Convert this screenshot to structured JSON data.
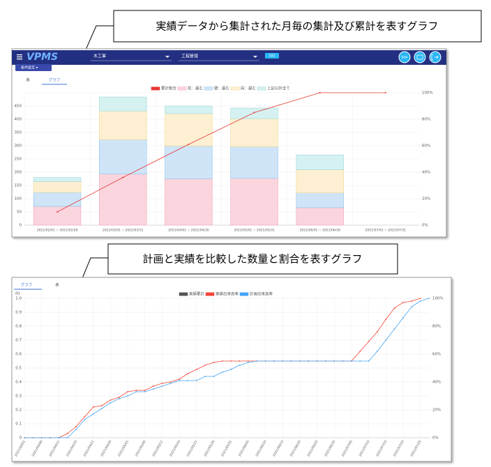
{
  "callouts": [
    "実績データから集計された月毎の集計及び累計を表すグラフ",
    "計画と実績を比較した数量と割合を表すグラフ"
  ],
  "app_bar": {
    "logo": "VPMS",
    "select1": "木工事",
    "select2": "工程管理",
    "go": "GO",
    "box": "box",
    "condition": "条件設定 ▾"
  },
  "tabs1": [
    "表",
    "グラフ"
  ],
  "tabs2": [
    "グラフ",
    "表"
  ],
  "chart_data": [
    {
      "type": "bar",
      "stacked": true,
      "categories": [
        "2021/02/01 ~ 2021/02/28",
        "2021/03/01 ~ 2021/03/31",
        "2021/04/01 ~ 2021/04/30",
        "2021/05/01 ~ 2021/05/31",
        "2021/06/01 ~ 2021/06/30",
        "2021/07/01 ~ 2021/07/31"
      ],
      "series": [
        {
          "name": "累計割合",
          "type": "line",
          "axis": "y2",
          "color": "#e53935",
          "values": [
            10,
            36,
            61,
            85,
            100,
            100
          ]
        },
        {
          "name": "柱：最む",
          "color": "#fbd5de",
          "border_color": "#f2a5b7",
          "values": [
            71,
            193,
            175,
            177,
            66,
            0
          ]
        },
        {
          "name": "壁：最む",
          "color": "#cfe5f7",
          "border_color": "#8ec2ea",
          "values": [
            53,
            130,
            124,
            119,
            56,
            0
          ]
        },
        {
          "name": "床：最む",
          "color": "#fdf0d2",
          "border_color": "#f3d690",
          "values": [
            40,
            108,
            122,
            106,
            87,
            0
          ]
        },
        {
          "name": "上記以外全て",
          "color": "#d5f1f1",
          "border_color": "#9fd8d8",
          "values": [
            16,
            53,
            29,
            40,
            56,
            0
          ]
        }
      ],
      "ylim": [
        0,
        500
      ],
      "yticks": [
        0,
        50,
        100,
        150,
        200,
        250,
        300,
        350,
        400,
        450
      ],
      "y2lim": [
        0,
        100
      ],
      "y2ticks": [
        {
          "value": 0,
          "label": "0%"
        },
        {
          "value": 20,
          "label": "20%"
        },
        {
          "value": 40,
          "label": "40%"
        },
        {
          "value": 60,
          "label": "60%"
        },
        {
          "value": 80,
          "label": "80%"
        },
        {
          "value": 100,
          "label": "100%"
        }
      ],
      "grid": true
    },
    {
      "type": "line",
      "axis_label": "(t)",
      "categories": [
        "2021/04/01",
        null,
        "2021/04/06",
        null,
        "2021/04/11",
        null,
        "2021/04/16",
        null,
        "2021/04/21",
        null,
        "2021/04/26",
        null,
        "2021/05/01",
        null,
        "2021/05/06",
        null,
        "2021/05/11",
        null,
        "2021/05/16",
        null,
        "2021/05/21",
        null,
        "2021/05/26",
        null,
        "2021/05/31",
        null,
        "2021/06/05",
        null,
        "2021/06/10",
        null,
        "2021/06/15",
        null,
        "2021/06/20",
        null,
        "2021/06/25",
        null,
        "2021/06/30",
        null,
        "2021/07/05",
        null,
        "2021/07/10",
        null,
        "2021/07/15",
        null,
        "2021/07/20",
        null,
        "2021/07/25",
        null
      ],
      "series": [
        {
          "name": "実績累計",
          "color": "#555555"
        },
        {
          "name": "実績出来高率",
          "color": "#f44336",
          "values": [
            0,
            0,
            0,
            0,
            0,
            0.03,
            0.08,
            0.15,
            0.22,
            0.23,
            0.27,
            0.29,
            0.33,
            0.34,
            0.34,
            0.37,
            0.39,
            0.4,
            0.42,
            0.46,
            0.49,
            0.52,
            0.54,
            0.55,
            0.55,
            0.55,
            0.55,
            0.55,
            0.55,
            0.55,
            0.55,
            0.55,
            0.55,
            0.55,
            0.55,
            0.55,
            0.55,
            0.55,
            0.55,
            0.62,
            0.69,
            0.76,
            0.85,
            0.93,
            0.97,
            0.98,
            1.0,
            null
          ]
        },
        {
          "name": "計画出来高率",
          "color": "#42a5f5",
          "values": [
            0,
            0,
            0,
            0,
            0,
            0,
            0.06,
            0.13,
            0.17,
            0.21,
            0.25,
            0.28,
            0.3,
            0.33,
            0.33,
            0.35,
            0.37,
            0.39,
            0.41,
            0.41,
            0.41,
            0.44,
            0.44,
            0.47,
            0.49,
            0.52,
            0.54,
            0.55,
            0.55,
            0.55,
            0.55,
            0.55,
            0.55,
            0.55,
            0.55,
            0.55,
            0.55,
            0.55,
            0.55,
            0.55,
            0.55,
            0.62,
            0.7,
            0.78,
            0.86,
            0.94,
            0.98,
            1.0
          ]
        }
      ],
      "ylim": [
        0,
        1
      ],
      "yticks": [
        0,
        0.1,
        0.2,
        0.3,
        0.4,
        0.5,
        0.6,
        0.7,
        0.8,
        0.9,
        {
          "value": 1,
          "label": "1.0"
        }
      ],
      "y2lim": [
        0,
        100
      ],
      "y2ticks": [
        {
          "value": 0,
          "label": "0%"
        },
        {
          "value": 20,
          "label": "20%"
        },
        {
          "value": 40,
          "label": "40%"
        },
        {
          "value": 60,
          "label": "60%"
        },
        {
          "value": 80,
          "label": "80%"
        },
        {
          "value": 100,
          "label": "100%"
        }
      ],
      "grid": true
    }
  ]
}
